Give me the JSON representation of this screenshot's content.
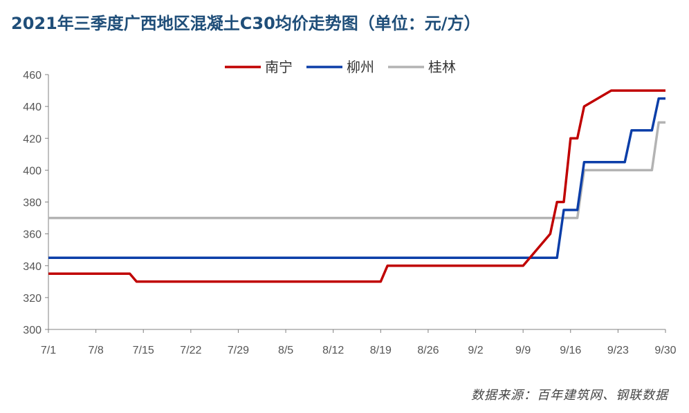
{
  "title": "2021年三季度广西地区混凝土C30均价走势图（单位：元/方）",
  "source": "数据来源：百年建筑网、钢联数据",
  "chart_data": {
    "type": "line",
    "title": "2021年三季度广西地区混凝土C30均价走势图（单位：元/方）",
    "xlabel": "",
    "ylabel": "",
    "x_start": "7/1",
    "x_end": "9/30",
    "x_ticks": [
      "7/1",
      "7/8",
      "7/15",
      "7/22",
      "7/29",
      "8/5",
      "8/12",
      "8/19",
      "8/26",
      "9/2",
      "9/9",
      "9/16",
      "9/23",
      "9/30"
    ],
    "ylim": [
      300,
      460
    ],
    "y_ticks": [
      300,
      320,
      340,
      360,
      380,
      400,
      420,
      440,
      460
    ],
    "grid": false,
    "legend_position": "top-center",
    "series": [
      {
        "name": "南宁",
        "color": "#c00000",
        "points": [
          [
            "7/1",
            335
          ],
          [
            "7/13",
            335
          ],
          [
            "7/14",
            330
          ],
          [
            "8/19",
            330
          ],
          [
            "8/20",
            340
          ],
          [
            "9/9",
            340
          ],
          [
            "9/13",
            360
          ],
          [
            "9/14",
            380
          ],
          [
            "9/15",
            380
          ],
          [
            "9/16",
            420
          ],
          [
            "9/17",
            420
          ],
          [
            "9/18",
            440
          ],
          [
            "9/22",
            450
          ],
          [
            "9/30",
            450
          ]
        ]
      },
      {
        "name": "柳州",
        "color": "#0b3ea8",
        "points": [
          [
            "7/1",
            345
          ],
          [
            "9/14",
            345
          ],
          [
            "9/15",
            375
          ],
          [
            "9/17",
            375
          ],
          [
            "9/18",
            405
          ],
          [
            "9/24",
            405
          ],
          [
            "9/25",
            425
          ],
          [
            "9/28",
            425
          ],
          [
            "9/29",
            445
          ],
          [
            "9/30",
            445
          ]
        ]
      },
      {
        "name": "桂林",
        "color": "#b3b3b3",
        "points": [
          [
            "7/1",
            370
          ],
          [
            "9/17",
            370
          ],
          [
            "9/18",
            400
          ],
          [
            "9/28",
            400
          ],
          [
            "9/29",
            430
          ],
          [
            "9/30",
            430
          ]
        ]
      }
    ]
  }
}
